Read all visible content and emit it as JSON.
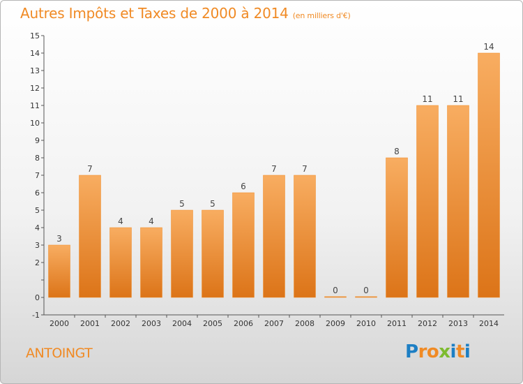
{
  "chart_data": {
    "type": "bar",
    "title": "Autres Impôts et Taxes de 2000 à 2014",
    "unit_label": "(en milliers d'€)",
    "categories": [
      "2000",
      "2001",
      "2002",
      "2003",
      "2004",
      "2005",
      "2006",
      "2007",
      "2008",
      "2009",
      "2010",
      "2011",
      "2012",
      "2013",
      "2014"
    ],
    "values": [
      3,
      7,
      4,
      4,
      5,
      5,
      6,
      7,
      7,
      0,
      0,
      8,
      11,
      11,
      14
    ],
    "data_labels": [
      "3",
      "7",
      "4",
      "4",
      "5",
      "5",
      "6",
      "7",
      "7",
      "0",
      "0",
      "8",
      "11",
      "11",
      "14"
    ],
    "ylim": [
      -1,
      15
    ],
    "yticks": [
      -1,
      0,
      1,
      2,
      3,
      4,
      5,
      6,
      7,
      8,
      9,
      10,
      11,
      12,
      13,
      14,
      15
    ],
    "ytick_labels": [
      "-1",
      "0",
      "",
      "2",
      "3",
      "4",
      "5",
      "6",
      "7",
      "8",
      "9",
      "10",
      "11",
      "12",
      "13",
      "14",
      "15"
    ],
    "xlabel": "",
    "ylabel": "",
    "grid": false,
    "bar_color": "#f08a24",
    "bar_color_light": "#f8ad61",
    "bar_color_dark": "#dc7418"
  },
  "commune": "ANTOINGT",
  "logo": {
    "letters": [
      "P",
      "r",
      "o",
      "x",
      "i",
      "t",
      "i"
    ],
    "colors": [
      "#1d7fc4",
      "#f08a24",
      "#f08a24",
      "#7dbb2f",
      "#1d7fc4",
      "#f08a24",
      "#1d7fc4"
    ]
  }
}
